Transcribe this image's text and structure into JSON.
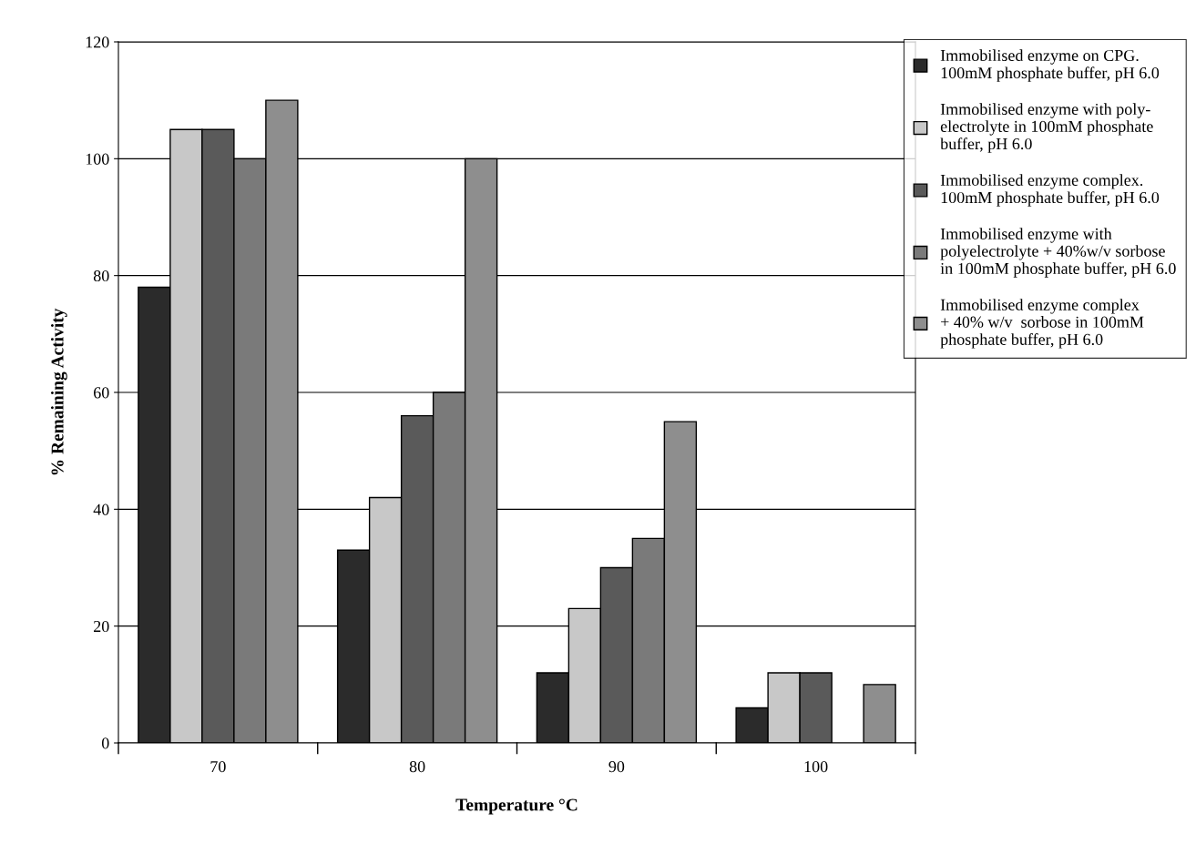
{
  "chart_data": {
    "type": "bar",
    "xlabel": "Temperature °C",
    "ylabel": "% Remaining Activity",
    "categories": [
      "70",
      "80",
      "90",
      "100"
    ],
    "series": [
      {
        "name": "Immobilised enzyme on CPG.\n100mM phosphate buffer, pH 6.0",
        "color": "#2b2b2b",
        "values": [
          78,
          33,
          12,
          6
        ]
      },
      {
        "name": "Immobilised enzyme with poly-\nelectrolyte in 100mM phosphate\nbuffer, pH 6.0",
        "color": "#c8c8c8",
        "values": [
          105,
          42,
          23,
          12
        ]
      },
      {
        "name": "Immobilised enzyme complex.\n100mM phosphate buffer, pH 6.0",
        "color": "#5a5a5a",
        "values": [
          105,
          56,
          30,
          12
        ]
      },
      {
        "name": "Immobilised enzyme with\npolyelectrolyte + 40%w/v sorbose\nin 100mM phosphate buffer, pH 6.0",
        "color": "#7a7a7a",
        "values": [
          100,
          60,
          35,
          null
        ]
      },
      {
        "name": "Immobilised enzyme complex\n+ 40% w/v  sorbose in 100mM\nphosphate buffer, pH 6.0",
        "color": "#8e8e8e",
        "values": [
          110,
          100,
          55,
          10
        ]
      }
    ],
    "ylim": [
      0,
      120
    ],
    "yticks": [
      0,
      20,
      40,
      60,
      80,
      100,
      120
    ],
    "grid": "y",
    "legend": "top right"
  }
}
